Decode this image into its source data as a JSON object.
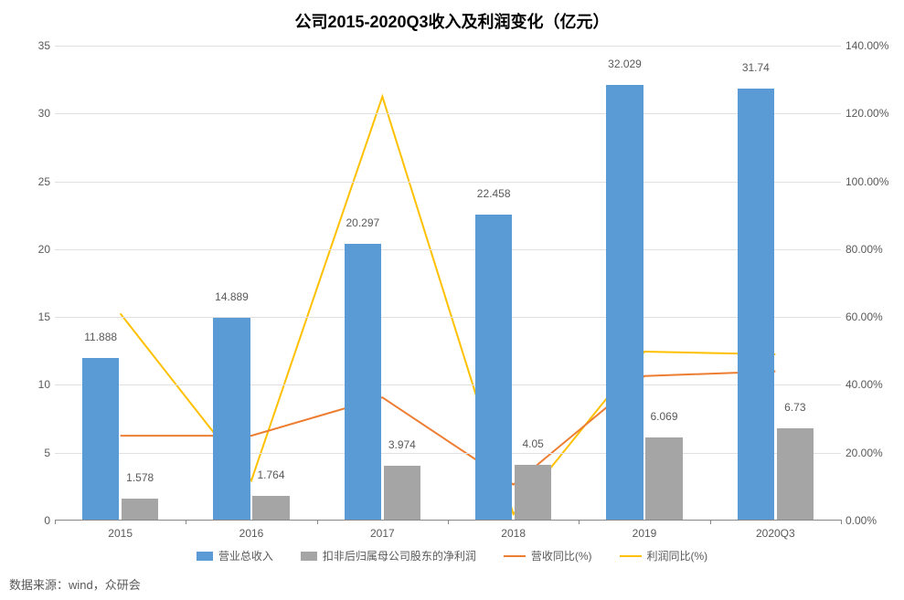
{
  "chart": {
    "title": "公司2015-2020Q3收入及利润变化（亿元）",
    "title_fontsize": 18,
    "title_color": "#000000",
    "background_color": "#ffffff",
    "grid_color": "#e0e0e0",
    "axis_color": "#888888",
    "text_color": "#595959",
    "categories": [
      "2015",
      "2016",
      "2017",
      "2018",
      "2019",
      "2020Q3"
    ],
    "left_axis": {
      "min": 0,
      "max": 35,
      "step": 5,
      "labels": [
        "0",
        "5",
        "10",
        "15",
        "20",
        "25",
        "30",
        "35"
      ]
    },
    "right_axis": {
      "min": 0,
      "max": 140,
      "step": 20,
      "labels": [
        "0.00%",
        "20.00%",
        "40.00%",
        "60.00%",
        "80.00%",
        "100.00%",
        "120.00%",
        "140.00%"
      ]
    },
    "bars": {
      "revenue": {
        "label": "营业总收入",
        "color": "#5b9bd5",
        "values": [
          11.888,
          14.889,
          20.297,
          22.458,
          32.029,
          31.74
        ],
        "value_labels": [
          "11.888",
          "14.889",
          "20.297",
          "22.458",
          "32.029",
          "31.74"
        ]
      },
      "profit": {
        "label": "扣非后归属母公司股东的净利润",
        "color": "#a5a5a5",
        "values": [
          1.578,
          1.764,
          3.974,
          4.05,
          6.069,
          6.73
        ],
        "value_labels": [
          "1.578",
          "1.764",
          "3.974",
          "4.05",
          "6.069",
          "6.73"
        ]
      },
      "bar_width_ratio": 0.28,
      "bar_gap_ratio": 0.02
    },
    "lines": {
      "revenue_yoy": {
        "label": "营收同比(%)",
        "color": "#ed7d31",
        "line_width": 2,
        "values": [
          25.0,
          25.0,
          36.3,
          10.6,
          42.6,
          44.0
        ]
      },
      "profit_yoy": {
        "label": "利润同比(%)",
        "color": "#ffc000",
        "line_width": 2,
        "values": [
          61.0,
          11.8,
          125.0,
          1.9,
          49.8,
          49.0
        ]
      }
    },
    "legend_order": [
      "revenue",
      "profit",
      "revenue_yoy",
      "profit_yoy"
    ],
    "source_text": "数据来源：wind，众研会"
  }
}
